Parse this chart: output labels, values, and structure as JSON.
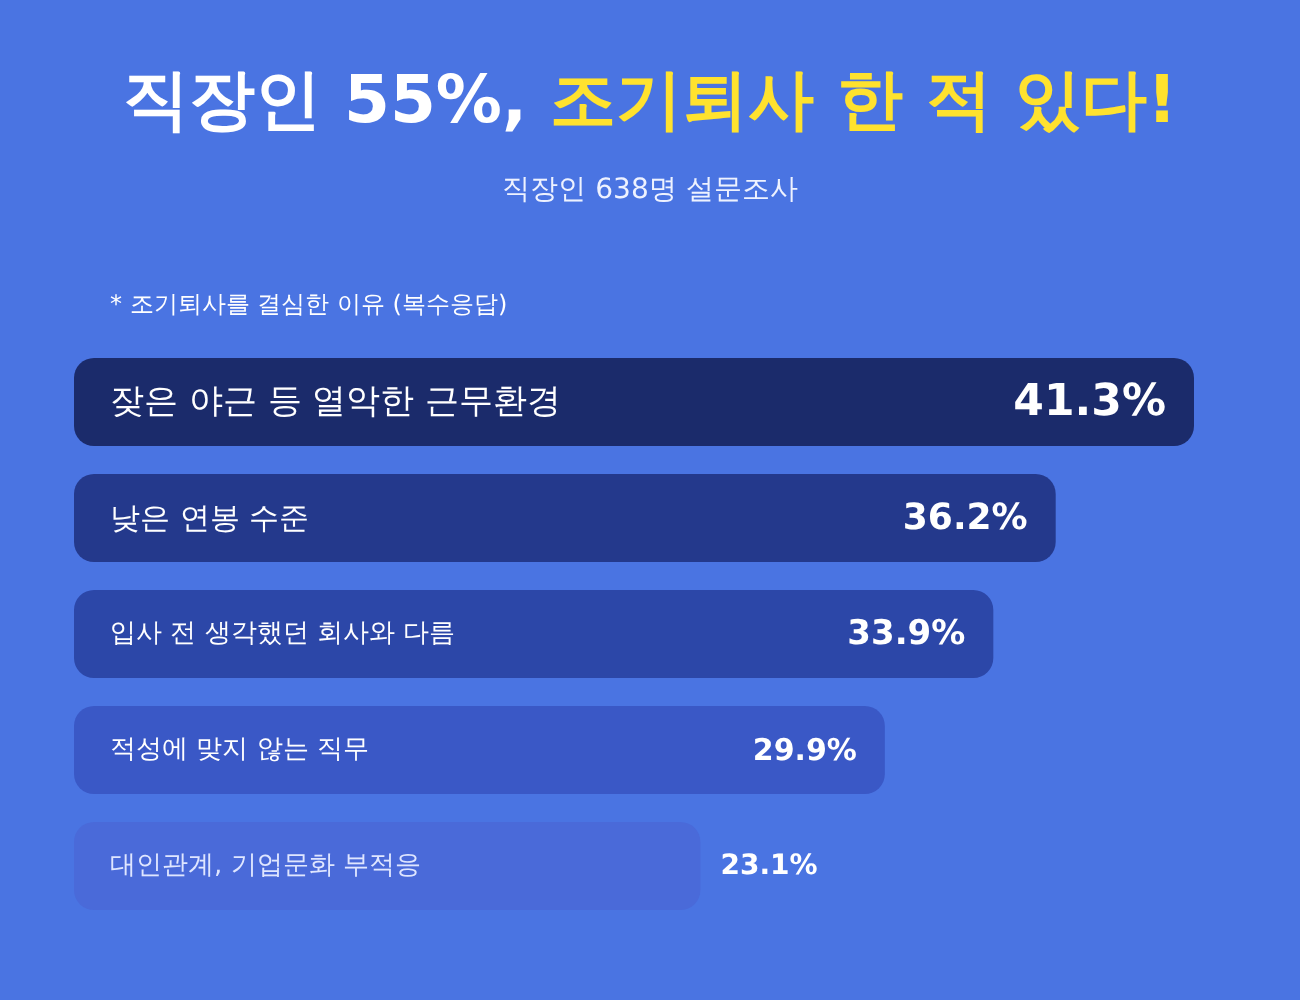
{
  "chart_data": {
    "type": "bar",
    "orientation": "horizontal",
    "title": "직장인 55%, 조기퇴사 한 적 있다!",
    "subtitle": "직장인 638명 설문조사",
    "annotations": [
      "* 조기퇴사를 결심한 이유 (복수응답)"
    ],
    "categories": [
      "잦은 야근 등 열악한 근무환경",
      "낮은 연봉 수준",
      "입사 전 생각했던 회사와 다름",
      "적성에 맞지 않는 직무",
      "대인관계, 기업문화 부적응"
    ],
    "values": [
      41.3,
      36.2,
      33.9,
      29.9,
      23.1
    ],
    "value_labels": [
      "41.3%",
      "36.2%",
      "33.9%",
      "29.9%",
      "23.1%"
    ],
    "colors": [
      "#1b2b6b",
      "#24398c",
      "#2c47a8",
      "#3a58c6",
      "#4a6ad9"
    ],
    "tick_labels": false
  }
}
